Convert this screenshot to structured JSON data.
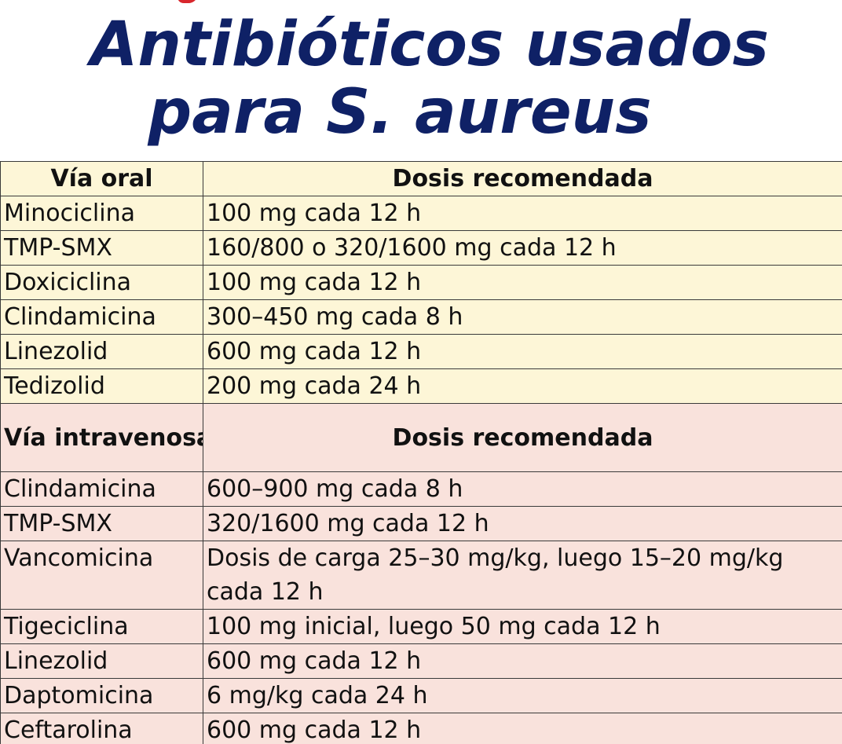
{
  "title": {
    "line1": "Antibióticos usados",
    "line2": "para S. aureus"
  },
  "colors": {
    "title": "#0f2166",
    "oral_bg": "#fdf6d7",
    "iv_bg": "#f9e2dc"
  },
  "oral": {
    "header_route": "Vía oral",
    "header_dose": "Dosis recomendada",
    "rows": [
      {
        "drug": "Minociclina",
        "dose": "100 mg cada 12 h"
      },
      {
        "drug": "TMP-SMX",
        "dose": "160/800 o 320/1600 mg cada 12 h"
      },
      {
        "drug": "Doxiciclina",
        "dose": "100 mg cada 12 h"
      },
      {
        "drug": "Clindamicina",
        "dose": "300–450 mg cada 8 h"
      },
      {
        "drug": "Linezolid",
        "dose": "600 mg cada 12 h"
      },
      {
        "drug": "Tedizolid",
        "dose": "200 mg cada 24 h"
      }
    ]
  },
  "iv": {
    "header_route": "Vía intravenosa",
    "header_dose": "Dosis recomendada",
    "rows": [
      {
        "drug": "Clindamicina",
        "dose": "600–900 mg cada 8 h"
      },
      {
        "drug": "TMP-SMX",
        "dose": "320/1600 mg cada 12 h"
      },
      {
        "drug": "Vancomicina",
        "dose": "Dosis de carga 25–30 mg/kg, luego 15–20 mg/kg cada 12 h"
      },
      {
        "drug": "Tigeciclina",
        "dose": "100 mg inicial, luego 50 mg cada 12 h"
      },
      {
        "drug": "Linezolid",
        "dose": "600 mg cada 12 h"
      },
      {
        "drug": "Daptomicina",
        "dose": "6 mg/kg cada 24 h"
      },
      {
        "drug": "Ceftarolina",
        "dose": "600 mg cada 12 h"
      }
    ]
  }
}
